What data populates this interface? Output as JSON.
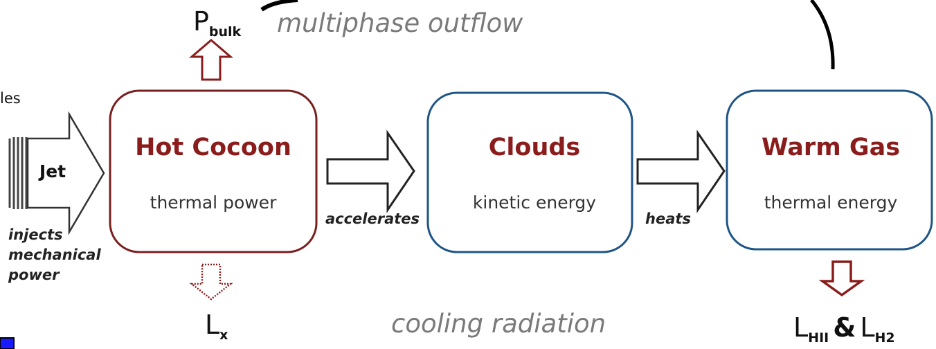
{
  "fragment_text": "les",
  "top": {
    "symbol": "P",
    "subscript": "bulk",
    "caption": "multiphase outflow"
  },
  "source": {
    "label": "Jet",
    "caption_lines": [
      "injects",
      "mechanical",
      "power"
    ]
  },
  "nodes": [
    {
      "title": "Hot Cocoon",
      "subtitle": "thermal power"
    },
    {
      "title": "Clouds",
      "subtitle": "kinetic energy"
    },
    {
      "title": "Warm Gas",
      "subtitle": "thermal energy"
    }
  ],
  "edges": [
    {
      "label": "accelerates"
    },
    {
      "label": "heats"
    }
  ],
  "bottom": {
    "cocoon_output": {
      "symbol": "L",
      "subscript": "x"
    },
    "caption": "cooling radiation",
    "warm_output": {
      "first": {
        "symbol": "L",
        "subscript": "HII"
      },
      "joiner": "&",
      "second": {
        "symbol": "L",
        "subscript": "H2"
      }
    }
  }
}
